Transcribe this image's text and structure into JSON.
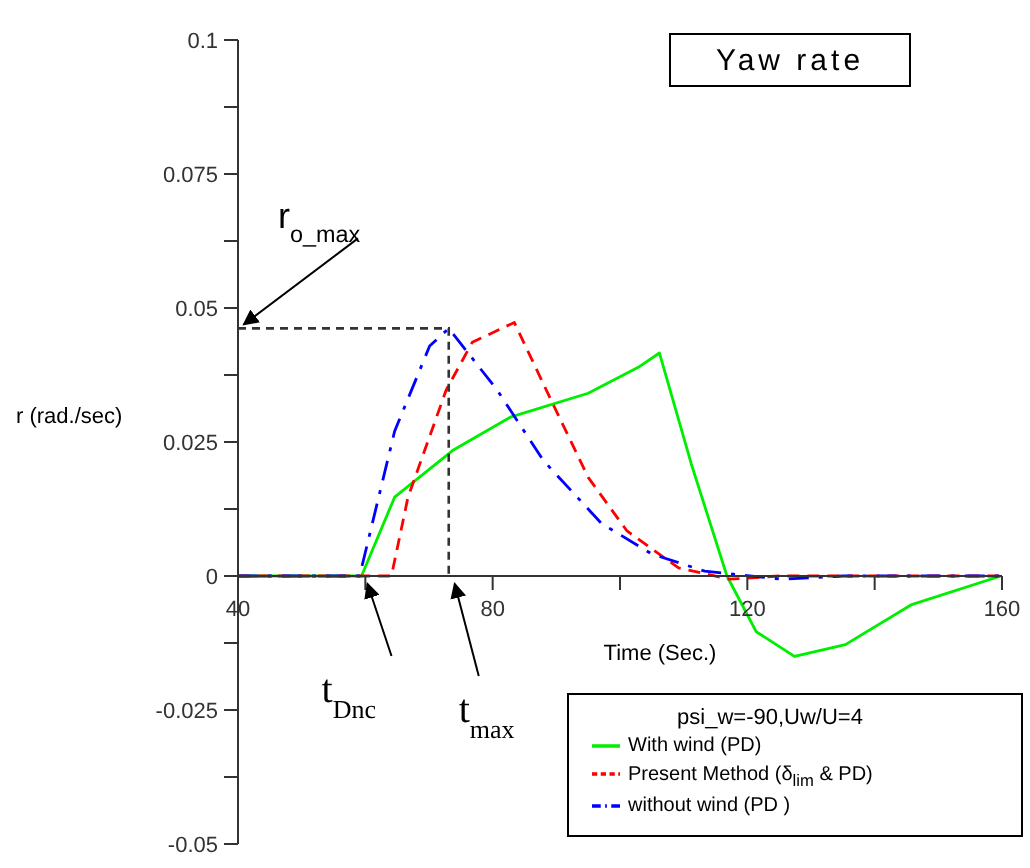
{
  "chart_data": {
    "type": "line",
    "title": "Yaw rate",
    "xlabel": "Time (Sec.)",
    "ylabel": "r (rad./sec)",
    "legend_title": "psi_w=-90,Uw/U=4",
    "xlim": [
      40,
      160
    ],
    "xticks": [
      40,
      {
        "value": 60,
        "label": null
      },
      80,
      {
        "value": 100,
        "label": null
      },
      120,
      {
        "value": 140,
        "label": null
      },
      160
    ],
    "ylim": [
      -0.05,
      0.1
    ],
    "yticks": [
      -0.05,
      {
        "value": -0.0375,
        "label": null
      },
      -0.025,
      {
        "value": -0.0125,
        "label": null
      },
      0,
      {
        "value": 0.0125,
        "label": null
      },
      0.025,
      {
        "value": 0.0375,
        "label": null
      },
      0.05,
      {
        "value": 0.0625,
        "label": null
      },
      0.075,
      {
        "value": 0.0875,
        "label": null
      },
      0.1
    ],
    "grid": false,
    "legend": "bottom right",
    "marker": "none",
    "series": [
      {
        "name": "With wind (PD)",
        "color": "#00ee00",
        "line_style": "solid",
        "x": [
          40,
          59.4,
          64.6,
          73.7,
          82.9,
          95.0,
          103.1,
          106.2,
          111.2,
          116.8,
          121.4,
          127.4,
          135.4,
          145.7,
          159.8
        ],
        "values": [
          0,
          0,
          0.0147,
          0.0234,
          0.0297,
          0.0341,
          0.0391,
          0.0416,
          0.0209,
          0,
          -0.0104,
          -0.015,
          -0.0128,
          -0.0054,
          0
        ]
      },
      {
        "name": "Present Method (δ$_{lim}$ & PD)",
        "color": "#ff0000",
        "line_style": "dashed",
        "x": [
          40,
          64.1,
          66.7,
          72.7,
          76.8,
          83.4,
          88.9,
          95.0,
          101.1,
          109.2,
          117.2,
          125,
          160
        ],
        "values": [
          0,
          0,
          0.0147,
          0.0347,
          0.0436,
          0.0473,
          0.0335,
          0.0184,
          0.0084,
          0.0015,
          -0.0006,
          0,
          0
        ]
      },
      {
        "name": "without wind (PD )",
        "color": "#0000ff",
        "line_style": "dashdot",
        "x": [
          40,
          59.1,
          64.6,
          70.1,
          73.1,
          80.7,
          88.0,
          97.1,
          105.0,
          113.3,
          125.4,
          135,
          160
        ],
        "values": [
          0,
          0,
          0.027,
          0.0429,
          0.0462,
          0.0347,
          0.0215,
          0.0098,
          0.0041,
          0.0009,
          -0.0006,
          0,
          0
        ]
      }
    ],
    "annotations": [
      "r$_{o_max}$",
      {
        "text": "t$_{Dnc}$",
        "x": 59.4,
        "y": 0
      },
      "t$_{max}$"
    ]
  }
}
